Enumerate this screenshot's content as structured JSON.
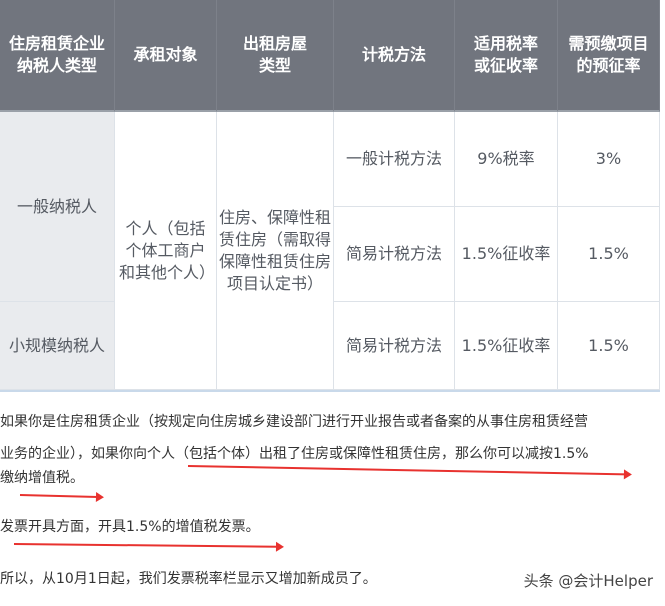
{
  "table": {
    "headers": [
      "住房租赁企业纳税人类型",
      "承租对象",
      "出租房屋类型",
      "计税方法",
      "适用税率或征收率",
      "需预缴项目的预征率"
    ],
    "header_lines": [
      [
        "住房租赁企业",
        "纳税人类型"
      ],
      [
        "承租对象"
      ],
      [
        "出租房屋",
        "类型"
      ],
      [
        "计税方法"
      ],
      [
        "适用税率",
        "或征收率"
      ],
      [
        "需预缴项目",
        "的预征率"
      ]
    ],
    "taxpayer_general": "一般纳税人",
    "taxpayer_small": "小规模纳税人",
    "tenant": "个人（包括个体工商户和其他个人）",
    "house_type": "住房、保障性租赁住房（需取得保障性租赁住房项目认定书）",
    "rows": [
      {
        "method": "一般计税方法",
        "rate": "9%税率",
        "prepay": "3%"
      },
      {
        "method": "简易计税方法",
        "rate": "1.5%征收率",
        "prepay": "1.5%"
      },
      {
        "method": "简易计税方法",
        "rate": "1.5%征收率",
        "prepay": "1.5%"
      }
    ]
  },
  "paragraphs": {
    "p1_line1": "如果你是住房租赁企业（按规定向住房城乡建设部门进行开业报告或者备案的从事住房租赁经营",
    "p1_line2": "业务的企业），如果你向个人（包括个体）出租了住房或保障性租赁住房，那么你可以减按1.5%",
    "p1_line3": "缴纳增值税。",
    "p2": "发票开具方面，开具1.5%的增值税发票。",
    "p3": "所以，从10月1日起，我们发票税率栏显示又增加新成员了。"
  },
  "watermark": "头条 @会计Helper",
  "colors": {
    "header_bg": "#71757e",
    "annotation": "#e8322f"
  }
}
